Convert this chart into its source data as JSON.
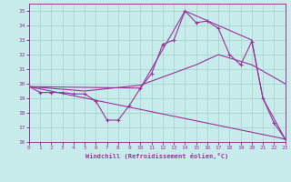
{
  "xlabel": "Windchill (Refroidissement éolien,°C)",
  "background_color": "#c8ecec",
  "grid_color": "#99ccbb",
  "line_color": "#993399",
  "xlim": [
    0,
    23
  ],
  "ylim": [
    16,
    25.5
  ],
  "yticks": [
    16,
    17,
    18,
    19,
    20,
    21,
    22,
    23,
    24,
    25
  ],
  "xticks": [
    0,
    1,
    2,
    3,
    4,
    5,
    6,
    7,
    8,
    9,
    10,
    11,
    12,
    13,
    14,
    15,
    16,
    17,
    18,
    19,
    20,
    21,
    22,
    23
  ],
  "line1_x": [
    0,
    1,
    2,
    3,
    4,
    5,
    6,
    7,
    8,
    9,
    10,
    11,
    12,
    13,
    14,
    15,
    16,
    17,
    18,
    19,
    20,
    21,
    22,
    23
  ],
  "line1_y": [
    19.8,
    19.4,
    19.4,
    19.4,
    19.3,
    19.3,
    18.8,
    17.5,
    17.5,
    18.5,
    19.7,
    20.7,
    22.7,
    23.0,
    25.0,
    24.2,
    24.3,
    23.8,
    22.0,
    21.3,
    22.9,
    19.0,
    17.3,
    16.2
  ],
  "line2_x": [
    0,
    23
  ],
  "line2_y": [
    19.8,
    16.2
  ],
  "line3_x": [
    0,
    10,
    14,
    20,
    21,
    23
  ],
  "line3_y": [
    19.8,
    19.7,
    25.0,
    23.0,
    19.0,
    16.2
  ],
  "line4_x": [
    0,
    5,
    10,
    15,
    17,
    20,
    23
  ],
  "line4_y": [
    19.8,
    19.5,
    19.9,
    21.3,
    22.0,
    21.3,
    20.0
  ]
}
